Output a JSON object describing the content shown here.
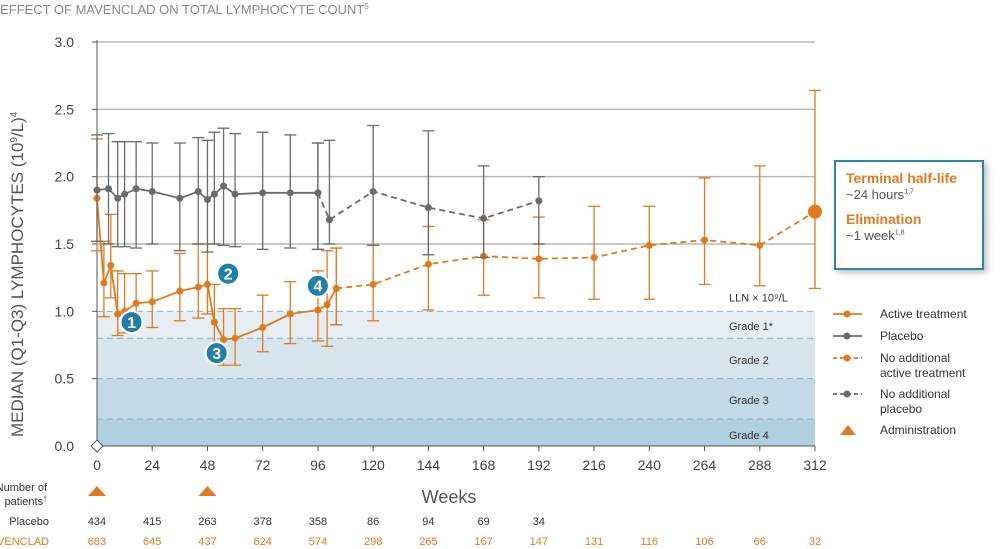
{
  "chart_data": {
    "type": "line",
    "title": "EFFECT OF MAVENCLAD ON TOTAL LYMPHOCYTE COUNT",
    "title_sup": "5",
    "ylabel": "MEDIAN (Q1-Q3) LYMPHOCYTES (10",
    "ylabel_sup1": "9",
    "ylabel_mid": "/L)",
    "ylabel_sup2": "4",
    "xlabel": "Weeks",
    "xlim": [
      0,
      312
    ],
    "ylim": [
      0,
      3.0
    ],
    "x_ticks": [
      0,
      24,
      48,
      72,
      96,
      120,
      144,
      168,
      192,
      216,
      240,
      264,
      288,
      312
    ],
    "y_ticks": [
      "0.0",
      "0.5",
      "1.0",
      "1.5",
      "2.0",
      "2.5",
      "3.0"
    ],
    "grid_lines": [
      1.5,
      2.0,
      2.5,
      3.0
    ],
    "grade_lines": [
      1.0,
      0.8,
      0.5,
      0.2
    ],
    "grade_labels": [
      {
        "text": "LLN × 10⁹/L",
        "y": 1.0
      },
      {
        "text": "Grade 1*",
        "y": 0.89
      },
      {
        "text": "Grade 2",
        "y": 0.64
      },
      {
        "text": "Grade 3",
        "y": 0.34
      },
      {
        "text": "Grade 4",
        "y": 0.08
      }
    ],
    "markers": [
      {
        "label": "1",
        "x": 15,
        "y": 0.92
      },
      {
        "label": "2",
        "x": 57,
        "y": 1.28
      },
      {
        "label": "3",
        "x": 52,
        "y": 0.69
      },
      {
        "label": "4",
        "x": 96,
        "y": 1.19
      }
    ],
    "series": [
      {
        "name": "Active treatment",
        "color": "#e07a1f",
        "style": "solid",
        "points": [
          [
            0,
            1.84,
            1.45,
            2.28
          ],
          [
            3,
            1.21,
            0.96,
            1.52
          ],
          [
            6,
            1.34,
            1.1,
            1.72
          ],
          [
            9,
            0.98,
            0.82,
            1.3
          ],
          [
            12,
            1.0,
            0.84,
            1.28
          ],
          [
            17,
            1.06,
            0.9,
            1.28
          ],
          [
            24,
            1.07,
            0.88,
            1.3
          ],
          [
            36,
            1.15,
            0.93,
            1.43
          ],
          [
            44,
            1.18,
            0.95,
            1.5
          ],
          [
            48,
            1.2,
            0.98,
            1.5
          ],
          [
            51,
            0.92,
            0.74,
            1.2
          ],
          [
            55,
            0.79,
            0.6,
            1.02
          ],
          [
            60,
            0.8,
            0.6,
            1.02
          ],
          [
            72,
            0.88,
            0.7,
            1.12
          ],
          [
            84,
            0.98,
            0.76,
            1.22
          ],
          [
            96,
            1.01,
            0.78,
            1.3
          ],
          [
            100,
            1.05,
            0.74,
            1.45
          ],
          [
            104,
            1.17,
            0.9,
            1.47
          ]
        ]
      },
      {
        "name": "Placebo",
        "color": "#6b6b6b",
        "style": "solid",
        "points": [
          [
            0,
            1.9,
            1.52,
            2.31
          ],
          [
            5,
            1.91,
            1.5,
            2.32
          ],
          [
            9,
            1.84,
            1.48,
            2.26
          ],
          [
            12,
            1.87,
            1.48,
            2.26
          ],
          [
            17,
            1.91,
            1.47,
            2.26
          ],
          [
            24,
            1.89,
            1.5,
            2.25
          ],
          [
            36,
            1.84,
            1.45,
            2.25
          ],
          [
            44,
            1.89,
            1.5,
            2.29
          ],
          [
            48,
            1.83,
            1.44,
            2.27
          ],
          [
            51,
            1.87,
            1.5,
            2.33
          ],
          [
            55,
            1.93,
            1.49,
            2.36
          ],
          [
            60,
            1.87,
            1.48,
            2.32
          ],
          [
            72,
            1.88,
            1.46,
            2.33
          ],
          [
            84,
            1.88,
            1.47,
            2.31
          ],
          [
            96,
            1.88,
            1.46,
            2.25
          ]
        ]
      },
      {
        "name": "No additional active treatment",
        "color": "#e07a1f",
        "style": "dashed",
        "points": [
          [
            104,
            1.17,
            0.9,
            1.47
          ],
          [
            120,
            1.2,
            0.93,
            1.49
          ],
          [
            144,
            1.35,
            1.01,
            1.63
          ],
          [
            168,
            1.41,
            1.12,
            1.68
          ],
          [
            192,
            1.39,
            1.1,
            1.7
          ],
          [
            216,
            1.4,
            1.09,
            1.78
          ],
          [
            240,
            1.49,
            1.09,
            1.78
          ],
          [
            264,
            1.53,
            1.2,
            1.99
          ],
          [
            288,
            1.49,
            1.19,
            2.08
          ],
          [
            312,
            1.74,
            1.17,
            2.64
          ]
        ]
      },
      {
        "name": "No additional placebo",
        "color": "#6b6b6b",
        "style": "dashed",
        "points": [
          [
            96,
            1.88,
            1.46,
            2.25
          ],
          [
            101,
            1.68,
            1.5,
            2.27
          ],
          [
            120,
            1.89,
            1.49,
            2.38
          ],
          [
            144,
            1.77,
            1.42,
            2.34
          ],
          [
            168,
            1.69,
            1.4,
            2.08
          ],
          [
            192,
            1.82,
            1.5,
            2.0
          ]
        ]
      }
    ],
    "legend": {
      "placement": "right",
      "items": [
        {
          "label": "Active treatment",
          "kind": "solid",
          "color": "#e07a1f"
        },
        {
          "label": "Placebo",
          "kind": "solid",
          "color": "#6b6b6b"
        },
        {
          "label": "No additional\nactive treatment",
          "kind": "dashed",
          "color": "#e07a1f"
        },
        {
          "label": "No additional\nplacebo",
          "kind": "dashed",
          "color": "#6b6b6b"
        },
        {
          "label": "Administration",
          "kind": "triangle",
          "color": "#e07a1f"
        }
      ]
    },
    "administration_weeks": [
      0,
      48
    ],
    "patients_table": {
      "header": "Number of\npatients",
      "header_sup": "†",
      "weeks": [
        0,
        24,
        48,
        72,
        96,
        120,
        144,
        168,
        192,
        216,
        240,
        264,
        288,
        312
      ],
      "rows": [
        {
          "label": "Placebo",
          "color": "#333333",
          "values": [
            "434",
            "415",
            "263",
            "378",
            "358",
            "86",
            "94",
            "69",
            "34",
            "",
            "",
            "",
            "",
            ""
          ]
        },
        {
          "label": "MAVENCLAD",
          "color": "#e07a1f",
          "values": [
            "683",
            "645",
            "437",
            "624",
            "574",
            "298",
            "265",
            "167",
            "147",
            "131",
            "116",
            "106",
            "66",
            "32"
          ]
        }
      ]
    }
  },
  "callout": {
    "half_life_title": "Terminal half-life",
    "half_life_value": "~24 hours",
    "half_life_sup": "1,7",
    "elimination_title": "Elimination",
    "elimination_value": "~1 week",
    "elimination_sup": "1,8"
  },
  "colors": {
    "orange": "#e07a1f",
    "gray": "#6b6b6b",
    "blue": "#1f7fa5"
  }
}
